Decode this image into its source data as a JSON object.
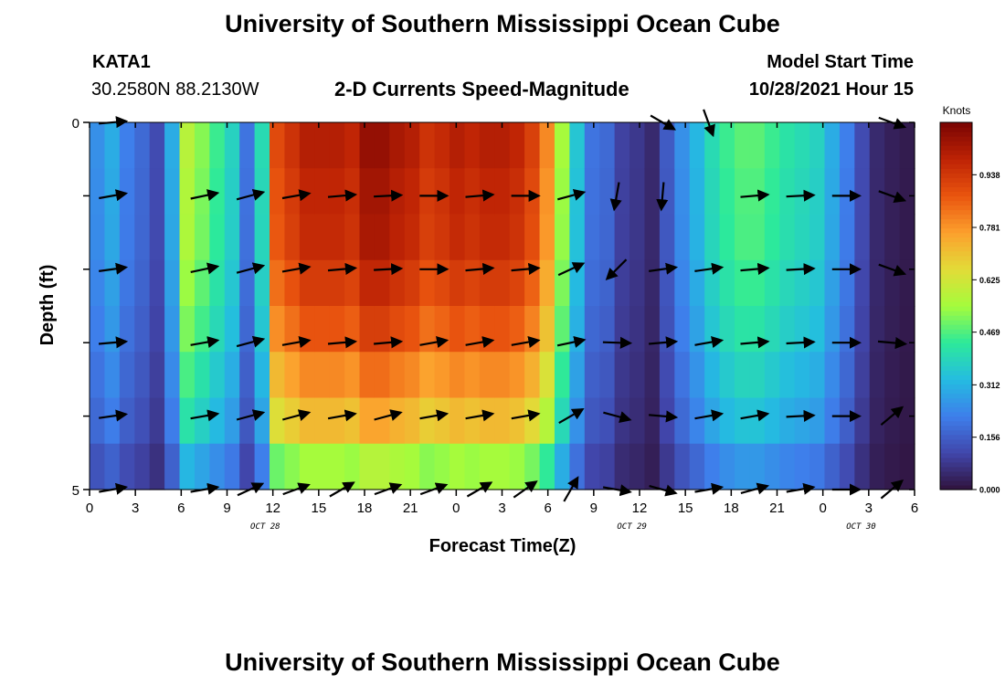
{
  "header": {
    "title": "University of Southern Mississippi Ocean Cube",
    "station": "KATA1",
    "coords": "30.2580N  88.2130W",
    "subtitle": "2-D Currents Speed-Magnitude",
    "model_label": "Model Start Time",
    "model_time": "10/28/2021 Hour 15"
  },
  "footer": {
    "title": "University of Southern Mississippi Ocean Cube"
  },
  "chart_data": {
    "type": "heatmap",
    "xlabel": "Forecast Time(Z)",
    "ylabel": "Depth (ft)",
    "x_ticks": [
      "0",
      "3",
      "6",
      "9",
      "12",
      "15",
      "18",
      "21",
      "0",
      "3",
      "6",
      "9",
      "12",
      "15",
      "18",
      "21",
      "0",
      "3",
      "6"
    ],
    "date_labels": [
      {
        "text": "OCT 28",
        "hour": 11.5
      },
      {
        "text": "OCT 29",
        "hour": 35.5
      },
      {
        "text": "OCT 30",
        "hour": 50.5
      }
    ],
    "y_ticks": [
      "0",
      "5"
    ],
    "ylim": [
      0,
      5
    ],
    "colorbar": {
      "title": "Knots",
      "ticks": [
        "0.938",
        "0.781",
        "0.625",
        "0.469",
        "0.312",
        "0.156",
        "0.000"
      ],
      "range": [
        0,
        1.094
      ]
    },
    "speed_by_hour": [
      0.25,
      0.3,
      0.22,
      0.18,
      0.12,
      0.3,
      0.58,
      0.52,
      0.45,
      0.38,
      0.2,
      0.4,
      0.9,
      0.95,
      1.0,
      1.0,
      1.0,
      0.98,
      1.05,
      1.05,
      1.02,
      1.0,
      0.95,
      0.97,
      1.0,
      0.98,
      1.0,
      1.0,
      0.98,
      0.92,
      0.8,
      0.55,
      0.35,
      0.2,
      0.18,
      0.1,
      0.08,
      0.05,
      0.15,
      0.25,
      0.32,
      0.4,
      0.45,
      0.48,
      0.48,
      0.45,
      0.42,
      0.4,
      0.38,
      0.3,
      0.22,
      0.12,
      0.05,
      0.03,
      0.02
    ],
    "depth_factors": [
      1.0,
      0.98,
      0.97,
      0.93,
      0.88,
      0.8,
      0.72,
      0.55
    ],
    "vectors": {
      "hours": [
        1.5,
        7.5,
        10.5,
        13.5,
        16.5,
        19.5,
        22.5,
        25.5,
        28.5,
        31.5,
        34.5,
        37.5,
        40.5,
        43.5,
        46.5,
        49.5,
        52.5
      ],
      "rows": [
        {
          "depth": 0.0,
          "angles": [
            -5,
            null,
            null,
            null,
            null,
            null,
            null,
            null,
            null,
            null,
            null,
            30,
            70,
            null,
            null,
            null,
            20
          ]
        },
        {
          "depth": 1.0,
          "angles": [
            -10,
            -12,
            -15,
            -10,
            -5,
            -3,
            0,
            -5,
            0,
            -15,
            100,
            95,
            null,
            -5,
            -3,
            0,
            20
          ]
        },
        {
          "depth": 2.0,
          "angles": [
            -8,
            -12,
            -15,
            -10,
            -5,
            -3,
            0,
            -5,
            -5,
            -25,
            135,
            -8,
            -8,
            -5,
            -3,
            0,
            20
          ]
        },
        {
          "depth": 3.0,
          "angles": [
            -5,
            -10,
            -15,
            -10,
            -5,
            -5,
            -10,
            -10,
            -10,
            -12,
            2,
            -5,
            -10,
            -5,
            -3,
            0,
            5
          ]
        },
        {
          "depth": 4.0,
          "angles": [
            -8,
            -10,
            -15,
            -15,
            -10,
            -15,
            -10,
            -10,
            -10,
            -30,
            15,
            5,
            -10,
            -10,
            -3,
            0,
            -40
          ]
        },
        {
          "depth": 5.0,
          "angles": [
            -10,
            -10,
            -25,
            -20,
            -30,
            -20,
            -20,
            -30,
            -35,
            -60,
            10,
            15,
            -10,
            -15,
            -10,
            0,
            -40
          ]
        }
      ]
    }
  }
}
